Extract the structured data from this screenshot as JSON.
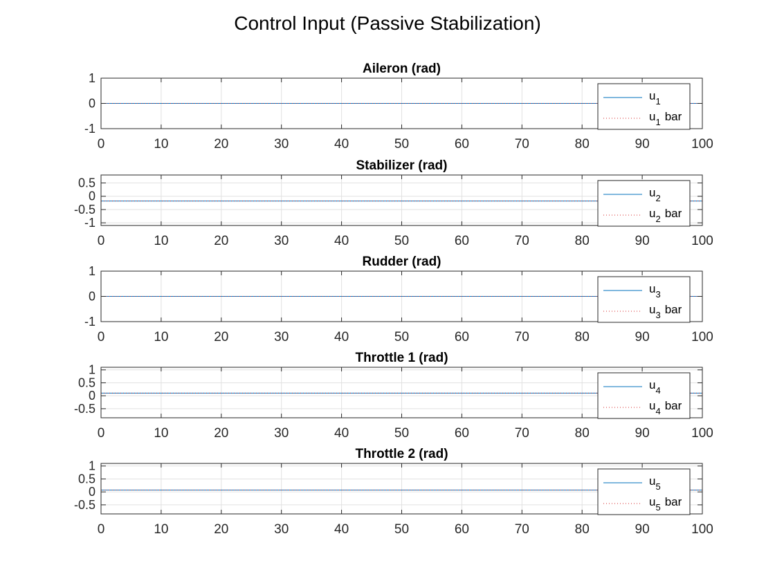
{
  "figure": {
    "title": "Control Input (Passive Stabilization)"
  },
  "colors": {
    "line": "#0072BD",
    "bar_line": "#D62728",
    "grid": "#E1E1E1",
    "axes": "#262626"
  },
  "chart_data": [
    {
      "type": "line",
      "title": "Aileron (rad)",
      "xlim": [
        0,
        100
      ],
      "ylim": [
        -1,
        1
      ],
      "xticks": [
        0,
        10,
        20,
        30,
        40,
        50,
        60,
        70,
        80,
        90,
        100
      ],
      "yticks": [
        -1,
        0,
        1
      ],
      "ytick_labels": [
        "-1",
        "0",
        "1"
      ],
      "grid": true,
      "legend_position": "top-right",
      "series": [
        {
          "name": "u_1",
          "label_base": "u",
          "label_sub": "1",
          "label_suffix": "",
          "style": "solid",
          "x": [
            0,
            100
          ],
          "y": [
            0,
            0
          ]
        },
        {
          "name": "u_1 bar",
          "label_base": "u",
          "label_sub": "1",
          "label_suffix": "bar",
          "style": "dotted",
          "x": [
            0,
            100
          ],
          "y": [
            0,
            0
          ]
        }
      ]
    },
    {
      "type": "line",
      "title": "Stabilizer (rad)",
      "xlim": [
        0,
        100
      ],
      "ylim": [
        -1.1,
        0.8
      ],
      "xticks": [
        0,
        10,
        20,
        30,
        40,
        50,
        60,
        70,
        80,
        90,
        100
      ],
      "yticks": [
        0.5,
        0,
        -0.5,
        -1
      ],
      "ytick_labels": [
        "0.5",
        "0",
        "-0.5",
        "-1"
      ],
      "grid": true,
      "legend_position": "top-right",
      "series": [
        {
          "name": "u_2",
          "label_base": "u",
          "label_sub": "2",
          "label_suffix": "",
          "style": "solid",
          "x": [
            0,
            100
          ],
          "y": [
            -0.18,
            -0.18
          ]
        },
        {
          "name": "u_2 bar",
          "label_base": "u",
          "label_sub": "2",
          "label_suffix": "bar",
          "style": "dotted",
          "x": [
            0,
            100
          ],
          "y": [
            -0.18,
            -0.18
          ]
        }
      ]
    },
    {
      "type": "line",
      "title": "Rudder (rad)",
      "xlim": [
        0,
        100
      ],
      "ylim": [
        -1,
        1
      ],
      "xticks": [
        0,
        10,
        20,
        30,
        40,
        50,
        60,
        70,
        80,
        90,
        100
      ],
      "yticks": [
        -1,
        0,
        1
      ],
      "ytick_labels": [
        "-1",
        "0",
        "1"
      ],
      "grid": true,
      "legend_position": "top-right",
      "series": [
        {
          "name": "u_3",
          "label_base": "u",
          "label_sub": "3",
          "label_suffix": "",
          "style": "solid",
          "x": [
            0,
            100
          ],
          "y": [
            0,
            0
          ]
        },
        {
          "name": "u_3 bar",
          "label_base": "u",
          "label_sub": "3",
          "label_suffix": "bar",
          "style": "dotted",
          "x": [
            0,
            100
          ],
          "y": [
            0,
            0
          ]
        }
      ]
    },
    {
      "type": "line",
      "title": "Throttle 1 (rad)",
      "xlim": [
        0,
        100
      ],
      "ylim": [
        -0.85,
        1.1
      ],
      "xticks": [
        0,
        10,
        20,
        30,
        40,
        50,
        60,
        70,
        80,
        90,
        100
      ],
      "yticks": [
        1,
        0.5,
        0,
        -0.5
      ],
      "ytick_labels": [
        "1",
        "0.5",
        "0",
        "-0.5"
      ],
      "grid": true,
      "legend_position": "top-right",
      "series": [
        {
          "name": "u_4",
          "label_base": "u",
          "label_sub": "4",
          "label_suffix": "",
          "style": "solid",
          "x": [
            0,
            100
          ],
          "y": [
            0.1,
            0.1
          ]
        },
        {
          "name": "u_4 bar",
          "label_base": "u",
          "label_sub": "4",
          "label_suffix": "bar",
          "style": "dotted",
          "x": [
            0,
            100
          ],
          "y": [
            0.1,
            0.1
          ]
        }
      ]
    },
    {
      "type": "line",
      "title": "Throttle 2 (rad)",
      "xlim": [
        0,
        100
      ],
      "ylim": [
        -0.85,
        1.1
      ],
      "xticks": [
        0,
        10,
        20,
        30,
        40,
        50,
        60,
        70,
        80,
        90,
        100
      ],
      "yticks": [
        1,
        0.5,
        0,
        -0.5
      ],
      "ytick_labels": [
        "1",
        "0.5",
        "0",
        "-0.5"
      ],
      "grid": true,
      "legend_position": "top-right",
      "series": [
        {
          "name": "u_5",
          "label_base": "u",
          "label_sub": "5",
          "label_suffix": "",
          "style": "solid",
          "x": [
            0,
            100
          ],
          "y": [
            0.07,
            0.07
          ]
        },
        {
          "name": "u_5 bar",
          "label_base": "u",
          "label_sub": "5",
          "label_suffix": "bar",
          "style": "dotted",
          "x": [
            0,
            100
          ],
          "y": [
            0.07,
            0.07
          ]
        }
      ]
    }
  ]
}
